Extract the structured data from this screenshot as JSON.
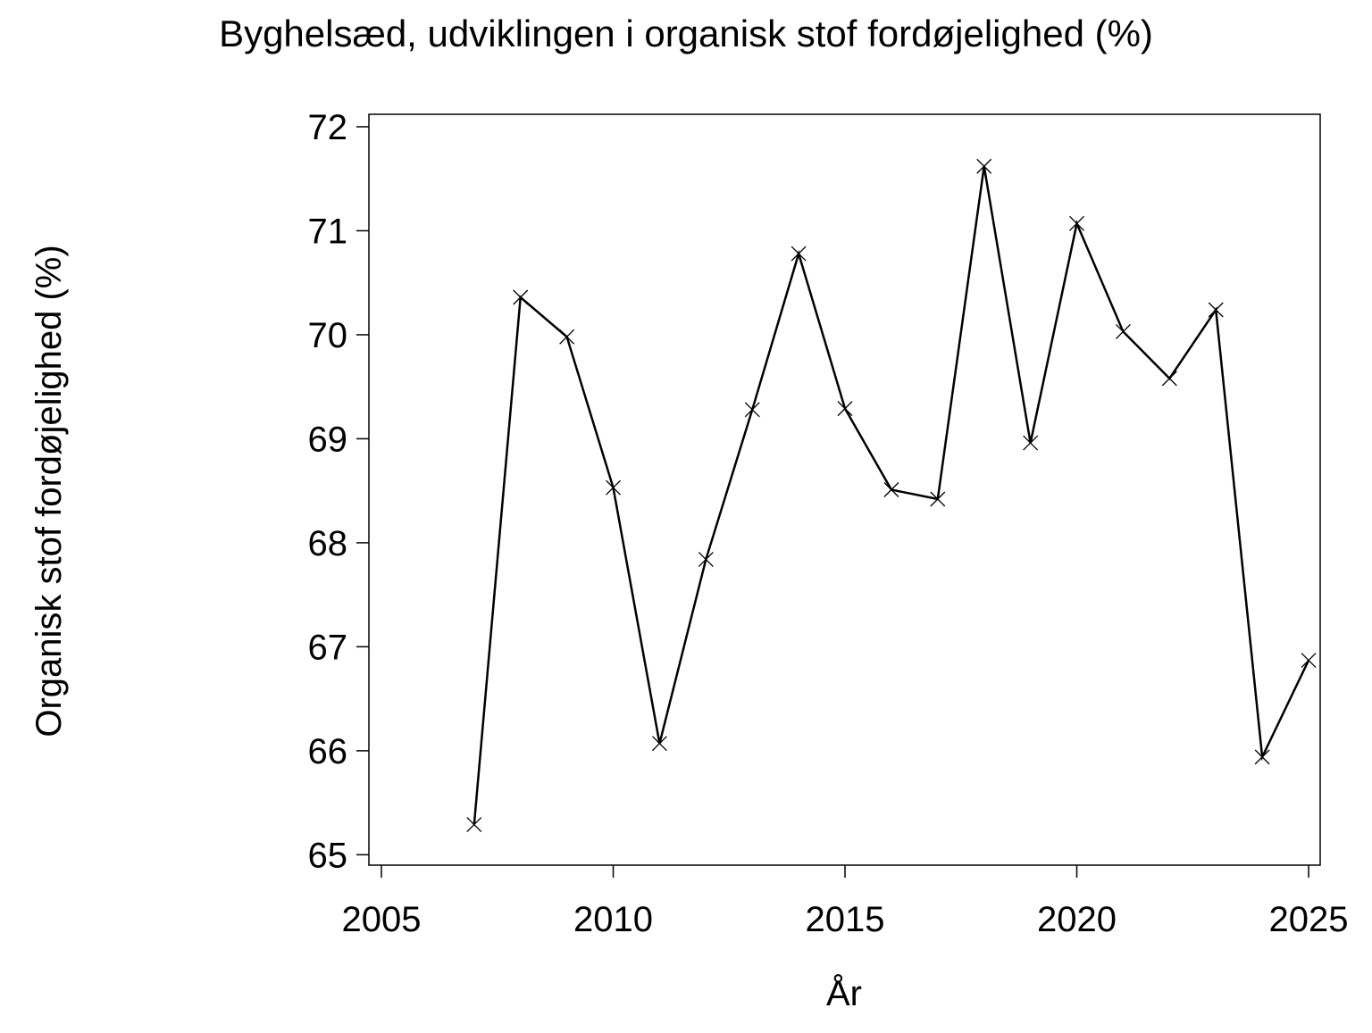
{
  "chart_data": {
    "type": "line",
    "title": "Byghelsæd, udviklingen i organisk stof fordøjelighed (%)",
    "x_label": "År",
    "y_label": "Organisk stof fordøjelighed (%)",
    "x": [
      2007,
      2008,
      2009,
      2010,
      2011,
      2012,
      2013,
      2014,
      2015,
      2016,
      2017,
      2018,
      2019,
      2020,
      2021,
      2022,
      2023,
      2024,
      2025
    ],
    "series": [
      {
        "name": "Organisk stof fordøjelighed (%)",
        "color": "#000000",
        "values": [
          65.29,
          70.36,
          69.98,
          68.53,
          66.07,
          67.84,
          69.28,
          70.78,
          69.29,
          68.51,
          68.42,
          71.62,
          68.96,
          71.07,
          70.03,
          69.58,
          70.24,
          65.94,
          66.87
        ]
      }
    ],
    "xlim": [
      2004.73,
      2025.25
    ],
    "xticks": [
      2005,
      2010,
      2015,
      2020,
      2025
    ],
    "ylim": [
      64.9,
      72.12
    ],
    "yticks": [
      65,
      66,
      67,
      68,
      69,
      70,
      71,
      72
    ],
    "marker": "x"
  }
}
